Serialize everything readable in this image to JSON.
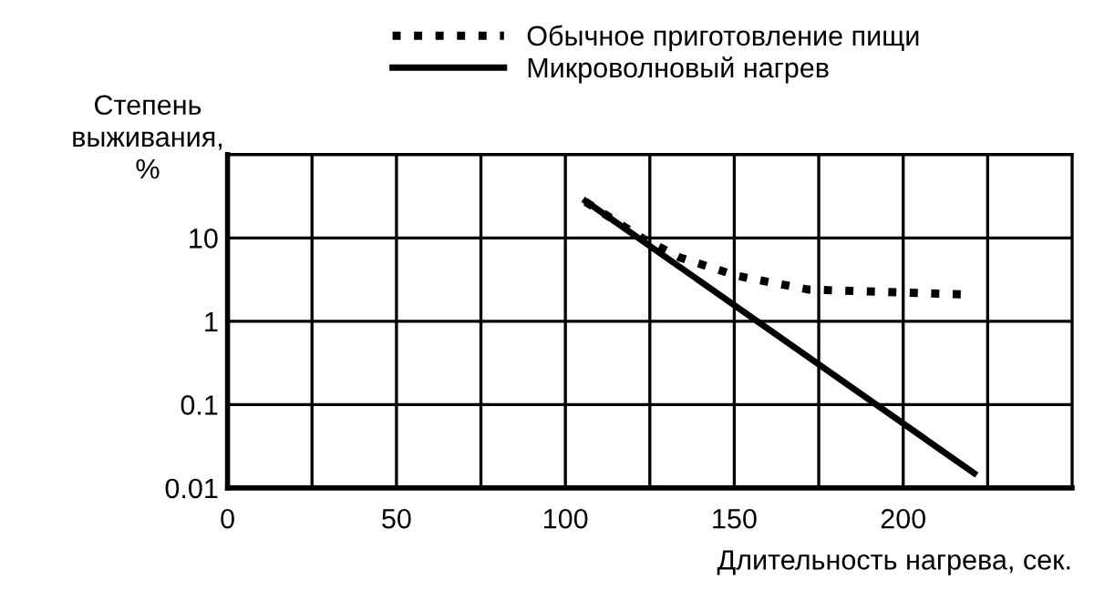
{
  "chart_data": {
    "type": "line",
    "ylabel": "Степень\nвыживания,\n%",
    "xlabel": "Длительность нагрева, сек.",
    "log": "y",
    "xlim": [
      0,
      250
    ],
    "ylim": [
      0.01,
      100
    ],
    "xticks": [
      0,
      {
        "value": 25,
        "label": null
      },
      50,
      {
        "value": 75,
        "label": null
      },
      100,
      {
        "value": 125,
        "label": null
      },
      150,
      {
        "value": 175,
        "label": null
      },
      200,
      {
        "value": 225,
        "label": null
      }
    ],
    "yticks": [
      0.01,
      0.1,
      1,
      10
    ],
    "grid": true,
    "legend": "top",
    "series": [
      {
        "name": "Обычное приготовление пищи",
        "color": "#000000",
        "line_style": "dotted",
        "x": [
          106,
          123,
          134,
          151,
          172,
          218
        ],
        "values": [
          27,
          9.8,
          5.8,
          3.5,
          2.4,
          2.1
        ]
      },
      {
        "name": "Микроволновый нагрев",
        "color": "#000000",
        "line_style": "solid",
        "x": [
          106,
          221
        ],
        "values": [
          27.7,
          0.015
        ]
      }
    ]
  }
}
